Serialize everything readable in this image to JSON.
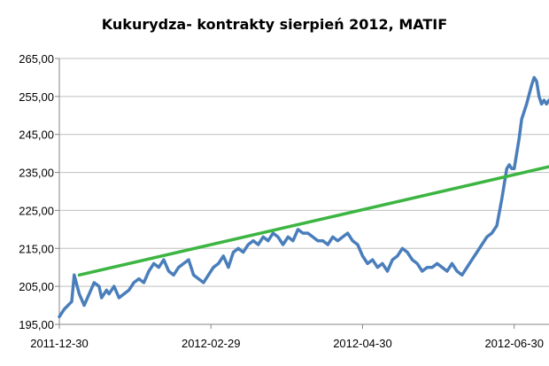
{
  "chart_data": {
    "type": "line",
    "title": "Kukurydza- kontrakty sierpień 2012, MATIF",
    "xlabel": "",
    "ylabel": "",
    "ylim": [
      195,
      265
    ],
    "yticks": [
      "265,00",
      "255,00",
      "245,00",
      "235,00",
      "225,00",
      "215,00",
      "205,00",
      "195,00"
    ],
    "ytick_values": [
      265,
      255,
      245,
      235,
      225,
      215,
      205,
      195
    ],
    "xticks": [
      "2011-12-30",
      "2012-02-29",
      "2012-04-30",
      "2012-06-30"
    ],
    "xtick_days": [
      0,
      61,
      122,
      183
    ],
    "xlim_days": [
      0,
      197
    ],
    "grid": "horizontal",
    "legend": "none",
    "colors": {
      "price": "#4a7ebb",
      "trend": "#3cb542",
      "grid": "#bfbfbf",
      "axis": "#868686"
    },
    "series": [
      {
        "type": "line",
        "x": [
          0,
          2,
          5,
          6,
          8,
          10,
          12,
          14,
          16,
          17,
          19,
          20,
          22,
          24,
          26,
          28,
          30,
          32,
          34,
          36,
          38,
          40,
          42,
          44,
          46,
          48,
          50,
          52,
          54,
          56,
          58,
          60,
          62,
          64,
          66,
          68,
          70,
          72,
          74,
          76,
          78,
          80,
          82,
          84,
          86,
          88,
          90,
          92,
          94,
          96,
          98,
          100,
          102,
          104,
          106,
          108,
          110,
          112,
          114,
          116,
          118,
          120,
          122,
          124,
          126,
          128,
          130,
          132,
          134,
          136,
          138,
          140,
          142,
          144,
          146,
          148,
          150,
          152,
          154,
          156,
          158,
          160,
          162,
          164,
          166,
          168,
          170,
          172,
          174,
          176,
          178,
          180,
          181,
          182,
          183,
          185,
          186,
          188,
          190,
          191,
          192,
          193,
          194,
          195,
          196,
          197
        ],
        "values": [
          197,
          199,
          201,
          208,
          203,
          200,
          203,
          206,
          205,
          202,
          204,
          203,
          205,
          202,
          203,
          204,
          206,
          207,
          206,
          209,
          211,
          210,
          212,
          209,
          208,
          210,
          211,
          212,
          208,
          207,
          206,
          208,
          210,
          211,
          213,
          210,
          214,
          215,
          214,
          216,
          217,
          216,
          218,
          217,
          219,
          218,
          216,
          218,
          217,
          220,
          219,
          219,
          218,
          217,
          217,
          216,
          218,
          217,
          218,
          219,
          217,
          216,
          213,
          211,
          212,
          210,
          211,
          209,
          212,
          213,
          215,
          214,
          212,
          211,
          209,
          210,
          210,
          211,
          210,
          209,
          211,
          209,
          208,
          210,
          212,
          214,
          216,
          218,
          219,
          221,
          228,
          236,
          237,
          236,
          236,
          244,
          249,
          253,
          258,
          260,
          259,
          255,
          253,
          254,
          253,
          254
        ]
      },
      {
        "type": "line",
        "x": [
          8,
          197
        ],
        "values": [
          208,
          236.5
        ]
      }
    ]
  }
}
